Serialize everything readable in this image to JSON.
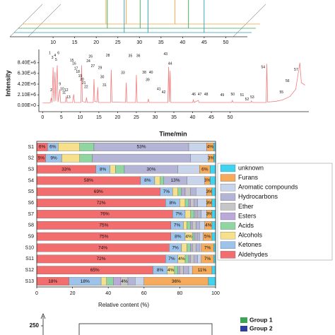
{
  "chart_data": [
    {
      "type": "waterfall",
      "xlim": [
        0,
        55
      ],
      "xticks": [
        10,
        15,
        20,
        25,
        30,
        35,
        40,
        45,
        50
      ],
      "series": [
        {
          "color": "#f2a33a",
          "x": [
            19.3,
            24.0,
            35.3
          ]
        },
        {
          "color": "#3aa655",
          "x": [
            20.6,
            28.2,
            39.4
          ]
        },
        {
          "color": "#2a9db0",
          "x": [
            25.5,
            31.0,
            44.0
          ]
        }
      ]
    },
    {
      "type": "line",
      "xlabel": "Time/min",
      "ylabel": "Intensity",
      "xlim": [
        -1,
        71
      ],
      "ylim": [
        -1200000,
        11000000
      ],
      "xticks": [
        0,
        5,
        10,
        15,
        20,
        25,
        30,
        35,
        40,
        45,
        50
      ],
      "yticks": [
        {
          "value": 0,
          "label": "0.00E+0"
        },
        {
          "value": 2100000,
          "label": "2.10E+6"
        },
        {
          "value": 4200000,
          "label": "4.20E+6"
        },
        {
          "value": 6300000,
          "label": "6.30E+6"
        },
        {
          "value": 8400000,
          "label": "8.40E+6"
        }
      ],
      "x": [
        0,
        2,
        2.3,
        2.5,
        2.8,
        3.0,
        3.3,
        3.5,
        3.9,
        4.1,
        4.6,
        4.8,
        6,
        6.3,
        6.5,
        8,
        8.3,
        8.5,
        10.2,
        10.4,
        10.6,
        11.5,
        11.7,
        11.9,
        13.5,
        13.7,
        13.9,
        14.5,
        14.7,
        14.9,
        18.1,
        18.3,
        18.5,
        22.1,
        22.3,
        22.5,
        24.8,
        25.0,
        25.2,
        28,
        28.2,
        28.4,
        33.4,
        33.6,
        33.8,
        34.0,
        34.2,
        40,
        40.2,
        40.4,
        41.5,
        41.7,
        50.4,
        50.6,
        50.8,
        55.5,
        55.7,
        55.9,
        59.6,
        59.8,
        60,
        62,
        64,
        66,
        67.5,
        68.6,
        69,
        70
      ],
      "series": [
        {
          "color": "#f07f7f",
          "values": [
            500000,
            500000,
            1500000,
            600000,
            7500000,
            800000,
            6600000,
            900000,
            7900000,
            700000,
            3200000,
            600000,
            600000,
            1800000,
            600000,
            600000,
            2200000,
            600000,
            600000,
            7900000,
            800000,
            600000,
            1600000,
            600000,
            600000,
            5200000,
            800000,
            700000,
            3600000,
            600000,
            600000,
            7000000,
            700000,
            600000,
            4500000,
            600000,
            600000,
            6000000,
            600000,
            600000,
            1300000,
            600000,
            600000,
            7600000,
            700000,
            6800000,
            600000,
            600000,
            1100000,
            600000,
            1000000,
            600000,
            600000,
            1000000,
            600000,
            600000,
            900000,
            600000,
            600000,
            8200000,
            700000,
            800000,
            1100000,
            1800000,
            3200000,
            8400000,
            4500000,
            4000000
          ]
        }
      ],
      "annotations": [
        {
          "text": "1",
          "x": 1.9,
          "y": 10300000
        },
        {
          "text": "2",
          "x": 2.3,
          "y": 3000000
        },
        {
          "text": "3",
          "x": 2.6,
          "y": 9400000
        },
        {
          "text": "4",
          "x": 3.3,
          "y": 9800000
        },
        {
          "text": "5",
          "x": 3.6,
          "y": 9000000
        },
        {
          "text": "6",
          "x": 4.2,
          "y": 10300000
        },
        {
          "text": "9",
          "x": 4.6,
          "y": 4200000
        },
        {
          "text": "10",
          "x": 5.2,
          "y": 3200000
        },
        {
          "text": "11",
          "x": 5.7,
          "y": 2500000
        },
        {
          "text": "12",
          "x": 6.3,
          "y": 3000000
        },
        {
          "text": "13",
          "x": 6.9,
          "y": 1600000
        },
        {
          "text": "15",
          "x": 7.8,
          "y": 8800000
        },
        {
          "text": "16",
          "x": 8.4,
          "y": 8200000
        },
        {
          "text": "17",
          "x": 8.9,
          "y": 7200000
        },
        {
          "text": "18",
          "x": 9.4,
          "y": 6600000
        },
        {
          "text": "19",
          "x": 10.0,
          "y": 5800000
        },
        {
          "text": "20",
          "x": 10.5,
          "y": 5100000
        },
        {
          "text": "21",
          "x": 11.0,
          "y": 4400000
        },
        {
          "text": "22",
          "x": 11.6,
          "y": 3600000
        },
        {
          "text": "24",
          "x": 12.2,
          "y": 8700000
        },
        {
          "text": "26",
          "x": 12.8,
          "y": 9600000
        },
        {
          "text": "27",
          "x": 13.4,
          "y": 7700000
        },
        {
          "text": "28",
          "x": 17.4,
          "y": 9800000
        },
        {
          "text": "29",
          "x": 15.3,
          "y": 7400000
        },
        {
          "text": "30",
          "x": 15.9,
          "y": 5600000
        },
        {
          "text": "31",
          "x": 16.5,
          "y": 4000000
        },
        {
          "text": "33",
          "x": 21.4,
          "y": 6400000
        },
        {
          "text": "35",
          "x": 23.4,
          "y": 9700000
        },
        {
          "text": "36",
          "x": 25.5,
          "y": 9700000
        },
        {
          "text": "38",
          "x": 27.1,
          "y": 6500000
        },
        {
          "text": "39",
          "x": 28.0,
          "y": 5000000
        },
        {
          "text": "40",
          "x": 28.9,
          "y": 6500000
        },
        {
          "text": "41",
          "x": 31.0,
          "y": 3200000
        },
        {
          "text": "42",
          "x": 32.3,
          "y": 2600000
        },
        {
          "text": "43",
          "x": 32.8,
          "y": 10100000
        },
        {
          "text": "44",
          "x": 34.0,
          "y": 8200000
        },
        {
          "text": "46",
          "x": 40.3,
          "y": 2200000
        },
        {
          "text": "47",
          "x": 41.9,
          "y": 2200000
        },
        {
          "text": "48",
          "x": 43.6,
          "y": 2200000
        },
        {
          "text": "49",
          "x": 47.9,
          "y": 2000000
        },
        {
          "text": "50",
          "x": 50.7,
          "y": 2200000
        },
        {
          "text": "51",
          "x": 53.2,
          "y": 2000000
        },
        {
          "text": "52",
          "x": 54.5,
          "y": 1200000
        },
        {
          "text": "53",
          "x": 55.9,
          "y": 1600000
        },
        {
          "text": "54",
          "x": 58.8,
          "y": 7500000
        },
        {
          "text": "55",
          "x": 63.7,
          "y": 2600000
        },
        {
          "text": "56",
          "x": 65.3,
          "y": 4800000
        },
        {
          "text": "57",
          "x": 67.6,
          "y": 7000000
        }
      ]
    },
    {
      "type": "stacked_barh",
      "xlabel": "Relative content (%)",
      "xlim": [
        0,
        100
      ],
      "xticks": [
        0,
        20,
        40,
        60,
        80,
        100
      ],
      "categories": [
        "S1",
        "S2",
        "S3",
        "S4",
        "S5",
        "S6",
        "S7",
        "S8",
        "S9",
        "S10",
        "S11",
        "S12",
        "S13"
      ],
      "series": [
        {
          "name": "Aldehydes",
          "color": "#f26d6d",
          "values": [
            6,
            5,
            33,
            58,
            69,
            72,
            76,
            75,
            75,
            74,
            72,
            65,
            18
          ],
          "value_labels": [
            "6%",
            "5%",
            "33%",
            "58%",
            "69%",
            "72%",
            "76%",
            "75%",
            "75%",
            "74%",
            "72%",
            "65%",
            "18%"
          ]
        },
        {
          "name": "Ketones",
          "color": "#9ec3ea",
          "values": [
            6,
            9,
            8,
            8,
            7,
            8,
            7,
            7,
            8,
            7,
            7,
            8,
            18
          ],
          "value_labels": [
            "6%",
            "9%",
            "8%",
            "8%",
            "7%",
            "8%",
            "7%",
            "7%",
            "8%",
            "7%",
            "7%",
            "8%",
            "18%"
          ]
        },
        {
          "name": "Alcohols",
          "color": "#f7e08c",
          "values": [
            12,
            10,
            3,
            3,
            3,
            3,
            3,
            2,
            4,
            3,
            4,
            4,
            3
          ],
          "value_labels": [
            null,
            null,
            null,
            null,
            null,
            null,
            null,
            null,
            "4%",
            null,
            "4%",
            "4%",
            null
          ]
        },
        {
          "name": "Acids",
          "color": "#8fd6a2",
          "values": [
            8,
            7,
            5,
            2,
            2,
            2,
            2,
            2,
            1,
            2,
            2,
            2,
            4
          ]
        },
        {
          "name": "Esters",
          "color": "#bba9d9",
          "values": [
            0,
            0,
            0,
            0,
            2,
            1,
            1,
            1,
            1,
            1,
            1,
            1,
            4
          ]
        },
        {
          "name": "Ether",
          "color": "#c6c6c6",
          "values": [
            0,
            0,
            0,
            0,
            3,
            2,
            1,
            2,
            1,
            2,
            2,
            2,
            4
          ],
          "value_labels": [
            null,
            null,
            null,
            null,
            null,
            null,
            null,
            null,
            null,
            null,
            null,
            null,
            "4%"
          ]
        },
        {
          "name": "Hydrocarbons",
          "color": "#b4b4d6",
          "values": [
            53,
            55,
            30,
            13,
            3,
            2,
            2,
            2,
            1,
            2,
            2,
            3,
            4
          ],
          "value_labels": [
            "53%",
            null,
            "30%",
            "13%",
            null,
            null,
            null,
            null,
            null,
            null,
            null,
            null,
            null
          ]
        },
        {
          "name": "Aromatic compounds",
          "color": "#c8d4ea",
          "values": [
            10,
            10,
            12,
            10,
            6,
            5,
            3,
            3,
            2,
            1,
            2,
            2,
            5
          ]
        },
        {
          "name": "Furans",
          "color": "#f5aa5c",
          "values": [
            4,
            3,
            6,
            3,
            3,
            3,
            3,
            4,
            5,
            7,
            7,
            11,
            36
          ],
          "value_labels": [
            "4%",
            "3%",
            "6%",
            "3%",
            "3%",
            "3%",
            "3%",
            "4%",
            "5%",
            "7%",
            "7%",
            "11%",
            "36%"
          ]
        },
        {
          "name": "unknown",
          "color": "#3fd3f0",
          "values": [
            1,
            1,
            3,
            3,
            2,
            2,
            2,
            2,
            2,
            1,
            1,
            2,
            4
          ]
        }
      ]
    },
    {
      "type": "box",
      "yticks": [
        250
      ],
      "series": [
        {
          "name": "Group 1",
          "color": "#3aa655"
        },
        {
          "name": "Group 2",
          "color": "#2c3e9e"
        }
      ]
    }
  ]
}
